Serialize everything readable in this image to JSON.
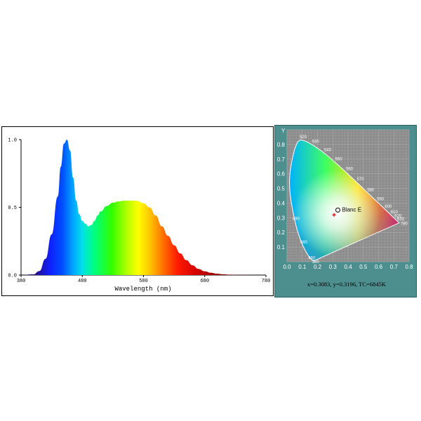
{
  "chart_data": [
    {
      "type": "area",
      "xlabel": "Wavelength (nm)",
      "ylabel": "",
      "xlim": [
        380,
        780
      ],
      "ylim": [
        0,
        1.0
      ],
      "x_ticks": [
        "380",
        "480",
        "580",
        "680",
        "780"
      ],
      "y_ticks": [
        "0.0",
        "0.5",
        "1.0"
      ],
      "x": [
        380,
        400,
        410,
        420,
        430,
        440,
        445,
        450,
        455,
        460,
        465,
        470,
        475,
        480,
        485,
        490,
        495,
        500,
        505,
        510,
        520,
        530,
        540,
        550,
        560,
        570,
        580,
        590,
        600,
        610,
        620,
        630,
        640,
        650,
        660,
        670,
        680,
        690,
        700,
        710,
        720,
        730,
        740,
        760,
        780
      ],
      "y": [
        0.0,
        0.005,
        0.03,
        0.12,
        0.3,
        0.58,
        0.8,
        0.97,
        1.0,
        0.92,
        0.72,
        0.55,
        0.45,
        0.4,
        0.38,
        0.36,
        0.37,
        0.4,
        0.44,
        0.47,
        0.51,
        0.535,
        0.545,
        0.55,
        0.55,
        0.548,
        0.53,
        0.5,
        0.44,
        0.36,
        0.29,
        0.22,
        0.16,
        0.11,
        0.072,
        0.045,
        0.028,
        0.017,
        0.01,
        0.006,
        0.003,
        0.0015,
        0.001,
        0.0,
        0.0
      ]
    },
    {
      "type": "scatter",
      "title": "",
      "xlabel": "",
      "ylabel": "Y",
      "xlim": [
        0,
        0.8
      ],
      "ylim": [
        0,
        0.9
      ],
      "x_ticks": [
        "0.0",
        "0.1",
        "0.2",
        "0.3",
        "0.4",
        "0.5",
        "0.6",
        "0.7",
        "0.8"
      ],
      "y_ticks": [
        "0.1",
        "0.2",
        "0.3",
        "0.4",
        "0.5",
        "0.6",
        "0.7",
        "0.8"
      ],
      "locus_labels": [
        {
          "nm": "520",
          "x": 0.074,
          "y": 0.834
        },
        {
          "nm": "530",
          "x": 0.155,
          "y": 0.806
        },
        {
          "nm": "540",
          "x": 0.23,
          "y": 0.754
        },
        {
          "nm": "550",
          "x": 0.302,
          "y": 0.692
        },
        {
          "nm": "560",
          "x": 0.373,
          "y": 0.624
        },
        {
          "nm": "570",
          "x": 0.444,
          "y": 0.555
        },
        {
          "nm": "580",
          "x": 0.512,
          "y": 0.487
        },
        {
          "nm": "590",
          "x": 0.575,
          "y": 0.424
        },
        {
          "nm": "600",
          "x": 0.627,
          "y": 0.373
        },
        {
          "nm": "610",
          "x": 0.666,
          "y": 0.334
        },
        {
          "nm": "620",
          "x": 0.691,
          "y": 0.308
        },
        {
          "nm": "630",
          "x": 0.708,
          "y": 0.292
        },
        {
          "nm": "780",
          "x": 0.735,
          "y": 0.265
        },
        {
          "nm": "490",
          "x": 0.045,
          "y": 0.295
        },
        {
          "nm": "480",
          "x": 0.091,
          "y": 0.133
        },
        {
          "nm": "460",
          "x": 0.144,
          "y": 0.03
        },
        {
          "nm": "380",
          "x": 0.174,
          "y": 0.005
        }
      ],
      "reference_point": {
        "label": "Blanc E",
        "x": 0.3333,
        "y": 0.3333
      },
      "measured_point": {
        "x": 0.3083,
        "y": 0.3196
      },
      "readout": "x=0.3083, y=0.3196, TC=6845K"
    }
  ]
}
